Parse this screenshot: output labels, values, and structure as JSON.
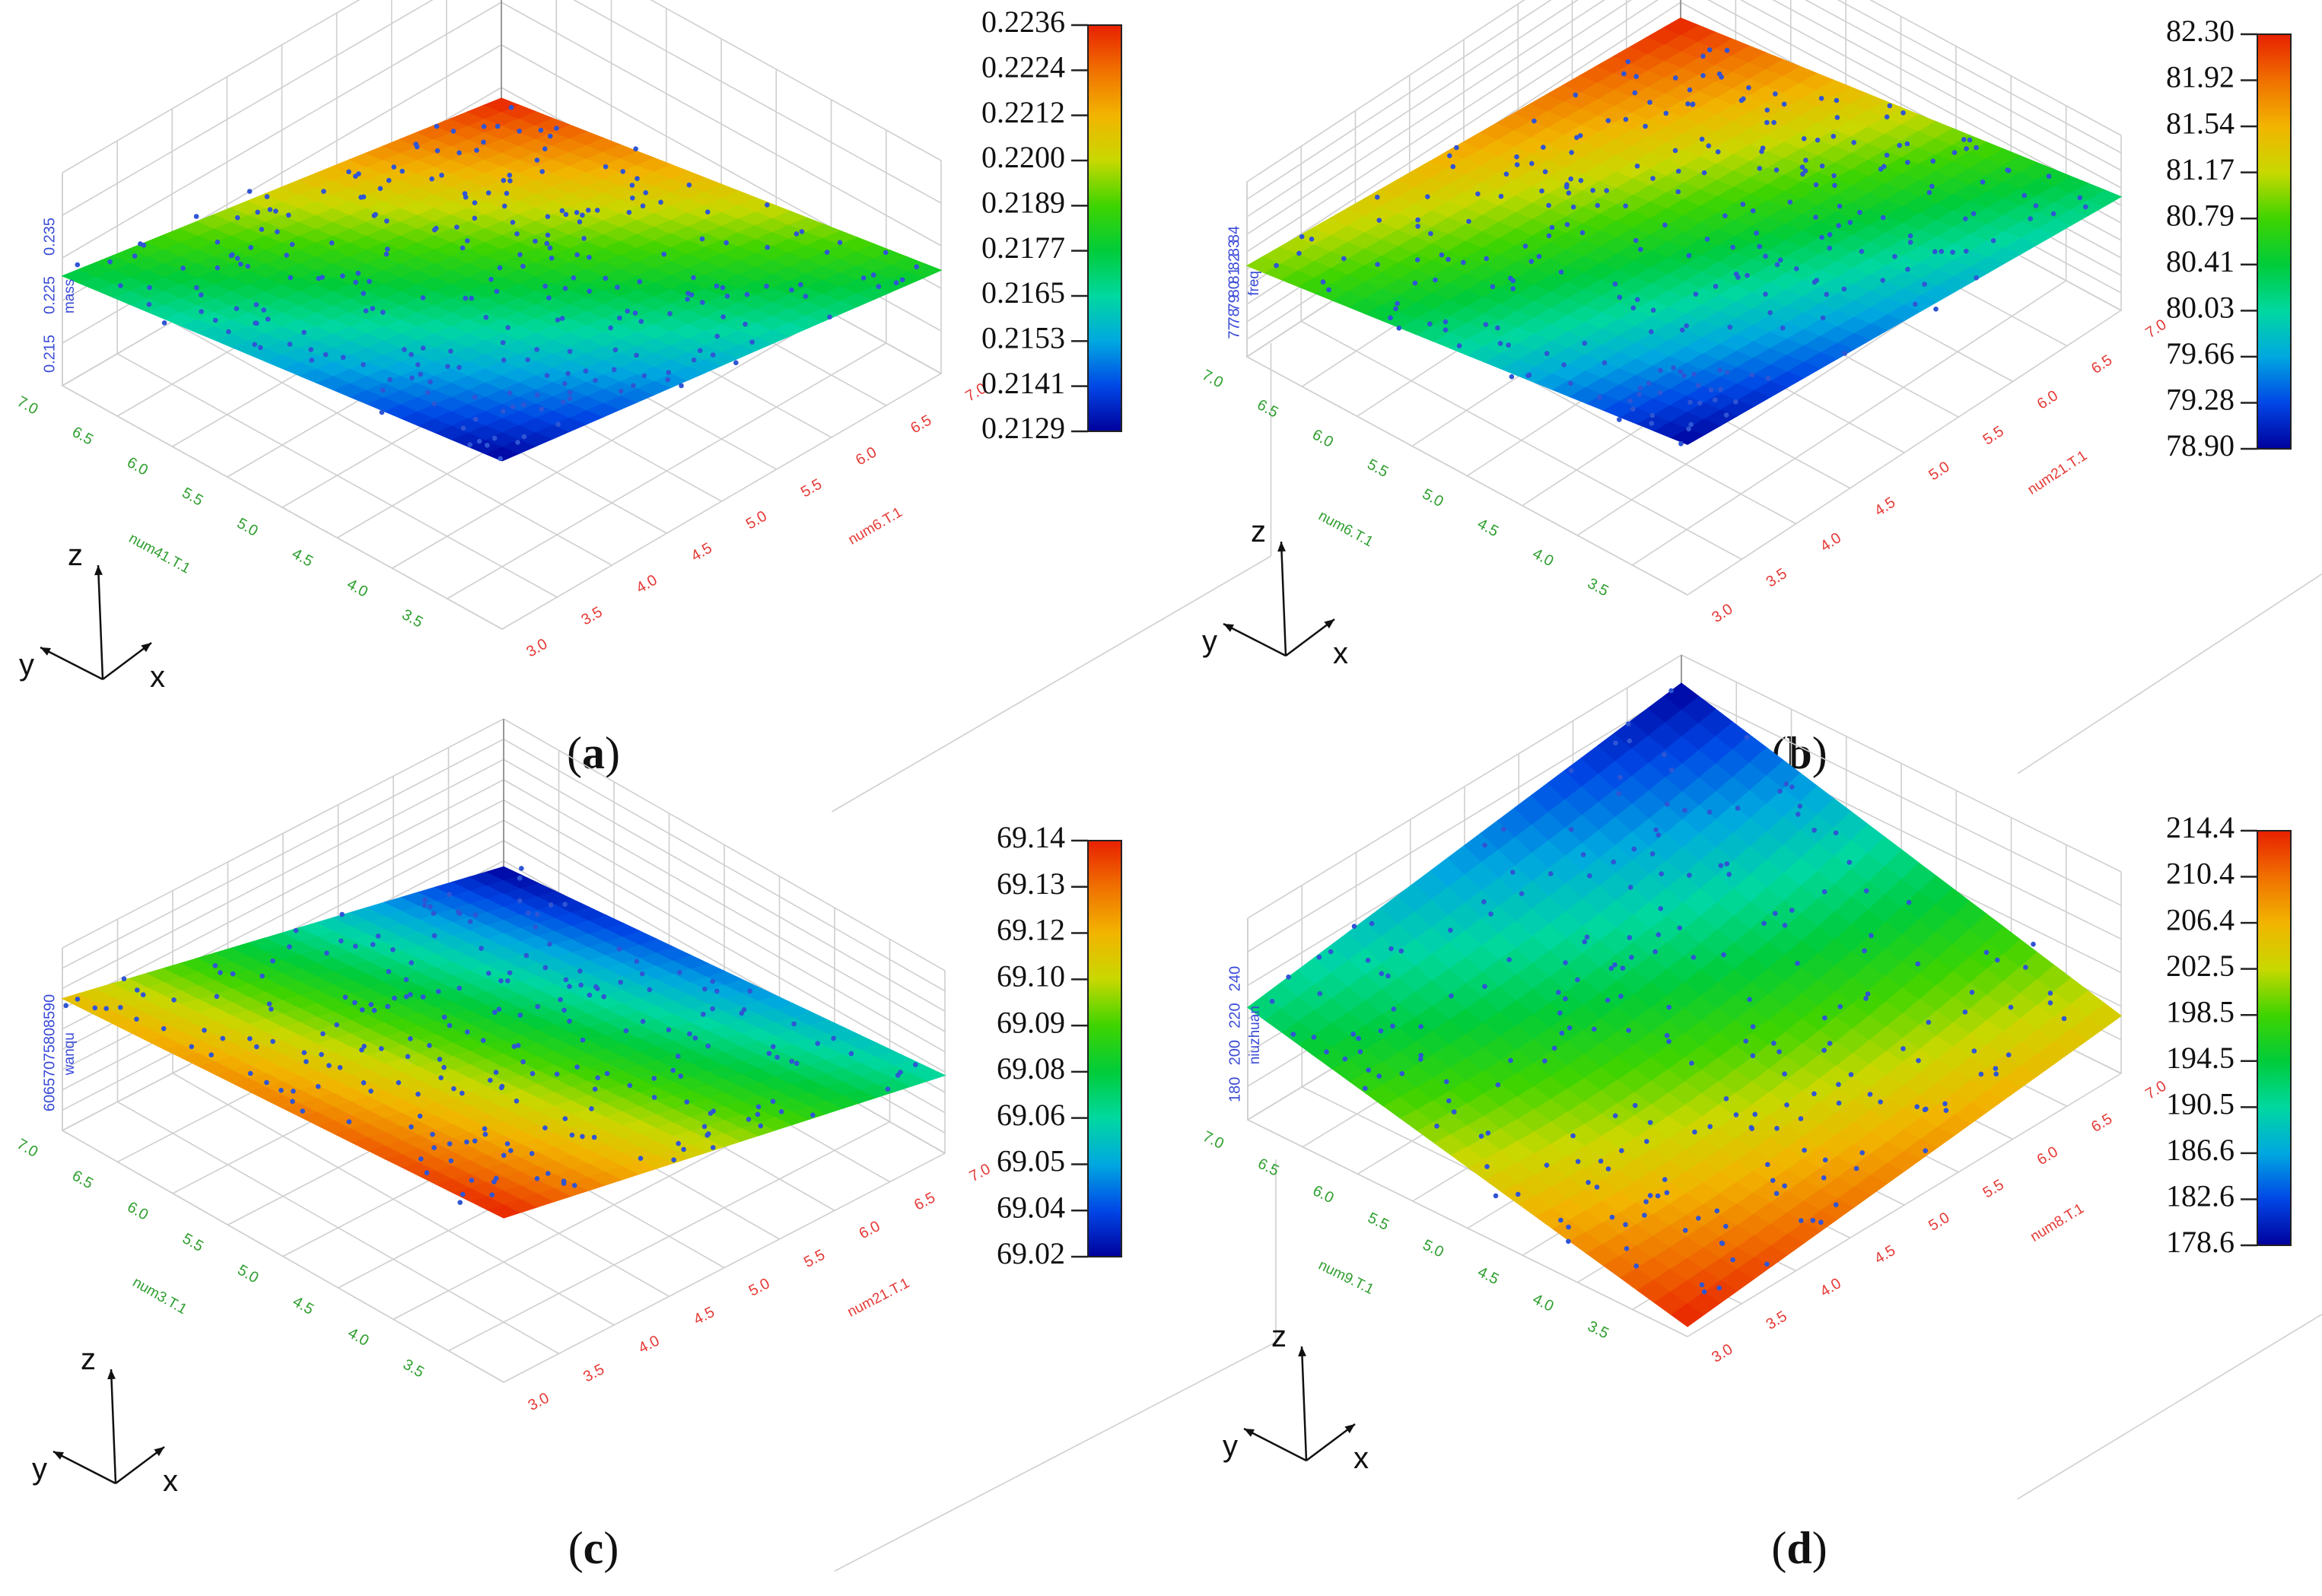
{
  "colors": {
    "x_axis_ticks": "#e53935",
    "y_axis_ticks": "#2e9e2e",
    "z_axis_ticks": "#3a4bd6",
    "points": "#2f55d4",
    "grid": "#cfcfcf",
    "colormap": [
      "#00009c",
      "#0047e6",
      "#00a8e0",
      "#00d8a0",
      "#00cc3a",
      "#3fd400",
      "#c8d800",
      "#f2b400",
      "#f07000",
      "#e82000"
    ]
  },
  "chart_data": [
    {
      "type": "surface3d",
      "panel_label": "a",
      "z_axis_name": "mass",
      "x_axis_name": "num6.T.1",
      "y_axis_name": "num41.T.1",
      "x_ticks": [
        "3.0",
        "3.5",
        "4.0",
        "4.5",
        "5.0",
        "5.5",
        "6.0",
        "6.5",
        "7.0"
      ],
      "y_ticks": [
        "3.5",
        "4.0",
        "4.5",
        "5.0",
        "5.5",
        "6.0",
        "6.5",
        "7.0"
      ],
      "z_ticks": [
        "0.215",
        "0.225",
        "0.235"
      ],
      "colorbar_ticks": [
        "0.2236",
        "0.2224",
        "0.2212",
        "0.2200",
        "0.2189",
        "0.2177",
        "0.2165",
        "0.2153",
        "0.2141",
        "0.2129"
      ],
      "colorbar_range": [
        0.2129,
        0.2236
      ],
      "corner_values": {
        "x_min_y_min": 0.2129,
        "x_max_y_min": 0.218,
        "x_min_y_max": 0.2175,
        "x_max_y_max": 0.2236
      },
      "curvature": 0.0,
      "scatter_count": 260,
      "axes_triad": {
        "z": "z",
        "y": "y",
        "x": "x"
      }
    },
    {
      "type": "surface3d",
      "panel_label": "b",
      "z_axis_name": "freq",
      "x_axis_name": "num21.T.1",
      "y_axis_name": "num6.T.1",
      "x_ticks": [
        "3.0",
        "3.5",
        "4.0",
        "4.5",
        "5.0",
        "5.5",
        "6.0",
        "6.5",
        "7.0"
      ],
      "y_ticks": [
        "3.5",
        "4.0",
        "4.5",
        "5.0",
        "5.5",
        "6.0",
        "6.5",
        "7.0"
      ],
      "z_ticks": [
        "77",
        "78",
        "79",
        "80",
        "81",
        "82",
        "83",
        "84"
      ],
      "colorbar_ticks": [
        "82.30",
        "81.92",
        "81.54",
        "81.17",
        "80.79",
        "80.41",
        "80.03",
        "79.66",
        "79.28",
        "78.90"
      ],
      "colorbar_range": [
        78.9,
        82.3
      ],
      "corner_values": {
        "x_min_y_min": 78.9,
        "x_max_y_min": 80.2,
        "x_min_y_max": 81.0,
        "x_max_y_max": 82.3
      },
      "curvature": 0.0,
      "scatter_count": 260,
      "axes_triad": {
        "z": "z",
        "y": "y",
        "x": "x"
      }
    },
    {
      "type": "surface3d",
      "panel_label": "c",
      "z_axis_name": "wanqu",
      "x_axis_name": "num21.T.1",
      "y_axis_name": "num3.T.1",
      "x_ticks": [
        "3.0",
        "3.5",
        "4.0",
        "4.5",
        "5.0",
        "5.5",
        "6.0",
        "6.5",
        "7.0"
      ],
      "y_ticks": [
        "3.5",
        "4.0",
        "4.5",
        "5.0",
        "5.5",
        "6.0",
        "6.5",
        "7.0"
      ],
      "z_ticks": [
        "60",
        "65",
        "70",
        "75",
        "80",
        "85",
        "90"
      ],
      "colorbar_ticks": [
        "69.14",
        "69.13",
        "69.12",
        "69.10",
        "69.09",
        "69.08",
        "69.06",
        "69.05",
        "69.04",
        "69.02"
      ],
      "colorbar_range": [
        69.02,
        69.14
      ],
      "corner_values": {
        "x_min_y_min": 69.14,
        "x_max_y_min": 69.06,
        "x_min_y_max": 69.11,
        "x_max_y_max": 69.02
      },
      "curvature": 0.0,
      "scatter_count": 230,
      "axes_triad": {
        "z": "z",
        "y": "y",
        "x": "x"
      }
    },
    {
      "type": "surface3d",
      "panel_label": "d",
      "z_axis_name": "niuzhuan",
      "x_axis_name": "num8.T.1",
      "y_axis_name": "num9.T.1",
      "x_ticks": [
        "3.0",
        "3.5",
        "4.0",
        "4.5",
        "5.0",
        "5.5",
        "6.0",
        "6.5",
        "7.0"
      ],
      "y_ticks": [
        "3.5",
        "4.0",
        "4.5",
        "5.0",
        "5.5",
        "6.0",
        "6.5",
        "7.0"
      ],
      "z_ticks": [
        "180",
        "200",
        "220",
        "240"
      ],
      "colorbar_ticks": [
        "214.4",
        "210.4",
        "206.4",
        "202.5",
        "198.5",
        "194.5",
        "190.5",
        "186.6",
        "182.6",
        "178.6"
      ],
      "colorbar_range": [
        178.6,
        214.4
      ],
      "corner_values": {
        "x_min_y_min": 214.4,
        "x_max_y_min": 204.0,
        "x_min_y_max": 192.0,
        "x_max_y_max": 178.6
      },
      "curvature": 8.0,
      "scatter_count": 230,
      "axes_triad": {
        "z": "z",
        "y": "y",
        "x": "x"
      }
    }
  ]
}
